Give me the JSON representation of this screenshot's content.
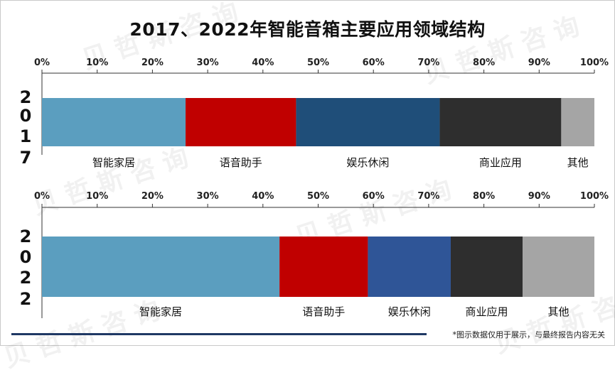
{
  "title": "2017、2022年智能音箱主要应用领域结构",
  "watermark": "贝哲斯咨询",
  "footer_note": "*图示数据仅用于展示，与最终报告内容无关",
  "chart_data": [
    {
      "type": "bar",
      "orientation": "horizontal-stacked-100",
      "row_label": "2017",
      "xlim": [
        0,
        100
      ],
      "ticks": [
        "0%",
        "10%",
        "20%",
        "30%",
        "40%",
        "50%",
        "60%",
        "70%",
        "80%",
        "90%",
        "100%"
      ],
      "segments": [
        {
          "name": "智能家居",
          "value": 26,
          "color": "#5b9ebf"
        },
        {
          "name": "语音助手",
          "value": 20,
          "color": "#c00000"
        },
        {
          "name": "娱乐休闲",
          "value": 26,
          "color": "#1f4e79"
        },
        {
          "name": "商业应用",
          "value": 22,
          "color": "#2e2e2e"
        },
        {
          "name": "其他",
          "value": 6,
          "color": "#a5a5a5"
        }
      ]
    },
    {
      "type": "bar",
      "orientation": "horizontal-stacked-100",
      "row_label": "2022",
      "xlim": [
        0,
        100
      ],
      "ticks": [
        "0%",
        "10%",
        "20%",
        "30%",
        "40%",
        "50%",
        "60%",
        "70%",
        "80%",
        "90%",
        "100%"
      ],
      "segments": [
        {
          "name": "智能家居",
          "value": 43,
          "color": "#5b9ebf"
        },
        {
          "name": "语音助手",
          "value": 16,
          "color": "#c00000"
        },
        {
          "name": "娱乐休闲",
          "value": 15,
          "color": "#2f5597"
        },
        {
          "name": "商业应用",
          "value": 13,
          "color": "#2e2e2e"
        },
        {
          "name": "其他",
          "value": 13,
          "color": "#a5a5a5"
        }
      ]
    }
  ]
}
